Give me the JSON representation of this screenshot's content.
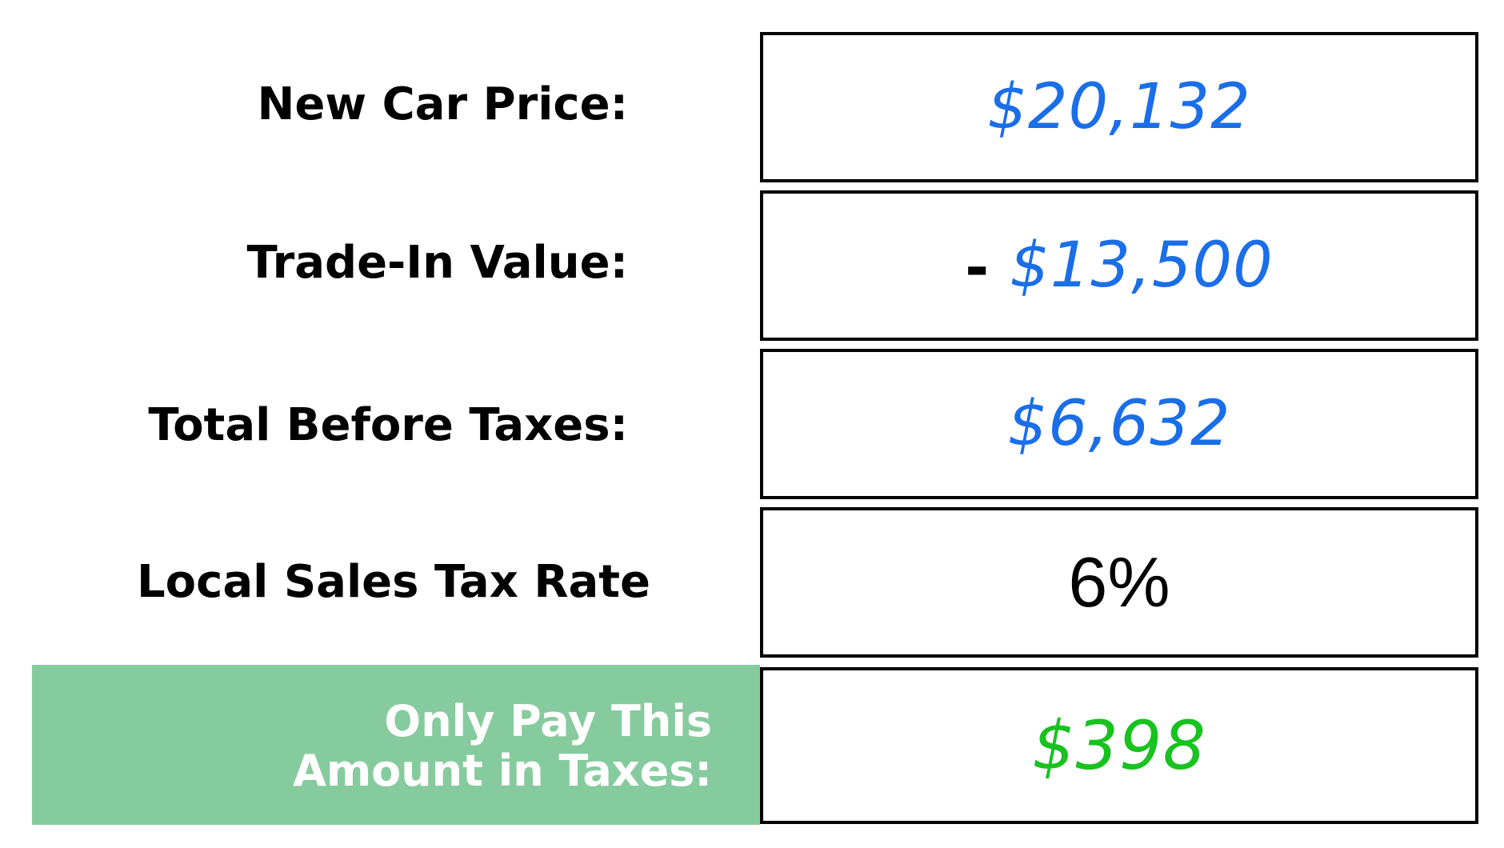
{
  "rows": [
    {
      "label": "New Car Price:",
      "value": "$20,132",
      "color": "#1a6ee8"
    },
    {
      "label": "Trade-In Value:",
      "prefix": "-",
      "value": "$13,500",
      "color": "#1a6ee8"
    },
    {
      "label": "Total Before Taxes:",
      "value": "$6,632",
      "color": "#1a6ee8"
    },
    {
      "label": "Local Sales Tax Rate",
      "value": "6%",
      "color": "#000000"
    }
  ],
  "result": {
    "label_line1": "Only Pay This",
    "label_line2": "Amount in Taxes:",
    "value": "$398",
    "value_color": "#18c21f",
    "panel_color": "#86cb9e"
  }
}
